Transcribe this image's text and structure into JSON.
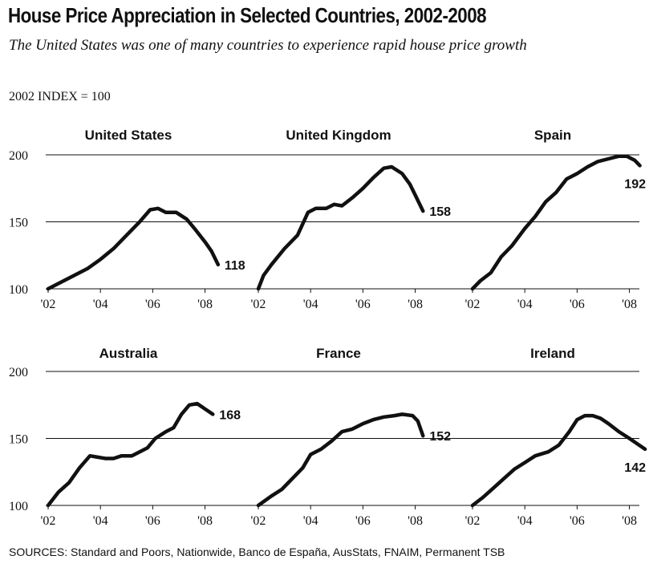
{
  "header": {
    "title": "House Price Appreciation in Selected Countries, 2002-2008",
    "subtitle": "The United States was one of many countries to experience rapid house price growth",
    "index_label": "2002 INDEX = 100"
  },
  "footer": {
    "sources": "SOURCES: Standard and Poors, Nationwide, Banco de España, AusStats, FNAIM, Permanent TSB"
  },
  "chart_data": [
    {
      "type": "line",
      "country": "United States",
      "end_label": "118",
      "x_ticks": [
        "'02",
        "'04",
        "'06",
        "'08"
      ],
      "y_ticks": [
        "100",
        "150",
        "200"
      ],
      "ylim": [
        100,
        200
      ],
      "xlim": [
        2002,
        2008.75
      ],
      "points": [
        [
          2002,
          100
        ],
        [
          2002.5,
          105
        ],
        [
          2003,
          110
        ],
        [
          2003.5,
          115
        ],
        [
          2004,
          122
        ],
        [
          2004.5,
          130
        ],
        [
          2005,
          140
        ],
        [
          2005.5,
          150
        ],
        [
          2005.9,
          159
        ],
        [
          2006.2,
          160
        ],
        [
          2006.5,
          157
        ],
        [
          2006.9,
          157
        ],
        [
          2007.3,
          152
        ],
        [
          2007.6,
          145
        ],
        [
          2008,
          135
        ],
        [
          2008.25,
          128
        ],
        [
          2008.5,
          118
        ]
      ]
    },
    {
      "type": "line",
      "country": "United Kingdom",
      "end_label": "158",
      "x_ticks": [
        "'02",
        "'04",
        "'06",
        "'08"
      ],
      "y_ticks": [
        "100",
        "150",
        "200"
      ],
      "ylim": [
        100,
        200
      ],
      "xlim": [
        2002,
        2008.75
      ],
      "points": [
        [
          2002,
          100
        ],
        [
          2002.2,
          110
        ],
        [
          2002.5,
          118
        ],
        [
          2003,
          130
        ],
        [
          2003.5,
          140
        ],
        [
          2003.9,
          157
        ],
        [
          2004.2,
          160
        ],
        [
          2004.6,
          160
        ],
        [
          2004.9,
          163
        ],
        [
          2005.2,
          162
        ],
        [
          2005.6,
          168
        ],
        [
          2006,
          175
        ],
        [
          2006.4,
          183
        ],
        [
          2006.8,
          190
        ],
        [
          2007.1,
          191
        ],
        [
          2007.5,
          186
        ],
        [
          2007.8,
          178
        ],
        [
          2008,
          170
        ],
        [
          2008.3,
          158
        ]
      ]
    },
    {
      "type": "line",
      "country": "Spain",
      "end_label": "192",
      "x_ticks": [
        "'02",
        "'04",
        "'06",
        "'08"
      ],
      "y_ticks": [
        "100",
        "150",
        "200"
      ],
      "ylim": [
        100,
        200
      ],
      "xlim": [
        2002,
        2008.75
      ],
      "points": [
        [
          2002,
          100
        ],
        [
          2002.3,
          106
        ],
        [
          2002.7,
          112
        ],
        [
          2003.1,
          124
        ],
        [
          2003.5,
          132
        ],
        [
          2004,
          145
        ],
        [
          2004.4,
          154
        ],
        [
          2004.8,
          165
        ],
        [
          2005.2,
          172
        ],
        [
          2005.6,
          182
        ],
        [
          2006,
          186
        ],
        [
          2006.4,
          191
        ],
        [
          2006.8,
          195
        ],
        [
          2007.2,
          197
        ],
        [
          2007.6,
          199
        ],
        [
          2007.9,
          199
        ],
        [
          2008.2,
          196
        ],
        [
          2008.4,
          192
        ]
      ]
    },
    {
      "type": "line",
      "country": "Australia",
      "end_label": "168",
      "x_ticks": [
        "'02",
        "'04",
        "'06",
        "'08"
      ],
      "y_ticks": [
        "100",
        "150",
        "200"
      ],
      "ylim": [
        100,
        200
      ],
      "xlim": [
        2002,
        2008.75
      ],
      "points": [
        [
          2002,
          100
        ],
        [
          2002.4,
          110
        ],
        [
          2002.8,
          117
        ],
        [
          2003.2,
          128
        ],
        [
          2003.6,
          137
        ],
        [
          2003.9,
          136
        ],
        [
          2004.2,
          135
        ],
        [
          2004.5,
          135
        ],
        [
          2004.8,
          137
        ],
        [
          2005.2,
          137
        ],
        [
          2005.5,
          140
        ],
        [
          2005.8,
          143
        ],
        [
          2006.1,
          150
        ],
        [
          2006.5,
          155
        ],
        [
          2006.8,
          158
        ],
        [
          2007.1,
          168
        ],
        [
          2007.4,
          175
        ],
        [
          2007.7,
          176
        ],
        [
          2008,
          172
        ],
        [
          2008.3,
          168
        ]
      ]
    },
    {
      "type": "line",
      "country": "France",
      "end_label": "152",
      "x_ticks": [
        "'02",
        "'04",
        "'06",
        "'08"
      ],
      "y_ticks": [
        "100",
        "150",
        "200"
      ],
      "ylim": [
        100,
        200
      ],
      "xlim": [
        2002,
        2008.75
      ],
      "points": [
        [
          2002,
          100
        ],
        [
          2002.5,
          107
        ],
        [
          2002.9,
          112
        ],
        [
          2003.3,
          120
        ],
        [
          2003.7,
          128
        ],
        [
          2004,
          138
        ],
        [
          2004.4,
          142
        ],
        [
          2004.8,
          148
        ],
        [
          2005.2,
          155
        ],
        [
          2005.6,
          157
        ],
        [
          2006,
          161
        ],
        [
          2006.4,
          164
        ],
        [
          2006.8,
          166
        ],
        [
          2007.2,
          167
        ],
        [
          2007.5,
          168
        ],
        [
          2007.9,
          167
        ],
        [
          2008.1,
          163
        ],
        [
          2008.3,
          152
        ]
      ]
    },
    {
      "type": "line",
      "country": "Ireland",
      "end_label": "142",
      "x_ticks": [
        "'02",
        "'04",
        "'06",
        "'08"
      ],
      "y_ticks": [
        "100",
        "150",
        "200"
      ],
      "ylim": [
        100,
        200
      ],
      "xlim": [
        2002,
        2008.75
      ],
      "points": [
        [
          2002,
          100
        ],
        [
          2002.4,
          106
        ],
        [
          2002.8,
          113
        ],
        [
          2003.2,
          120
        ],
        [
          2003.6,
          127
        ],
        [
          2004,
          132
        ],
        [
          2004.4,
          137
        ],
        [
          2004.9,
          140
        ],
        [
          2005.3,
          145
        ],
        [
          2005.7,
          155
        ],
        [
          2006,
          164
        ],
        [
          2006.3,
          167
        ],
        [
          2006.6,
          167
        ],
        [
          2006.9,
          165
        ],
        [
          2007.2,
          161
        ],
        [
          2007.6,
          155
        ],
        [
          2008,
          150
        ],
        [
          2008.3,
          146
        ],
        [
          2008.6,
          142
        ]
      ]
    }
  ]
}
